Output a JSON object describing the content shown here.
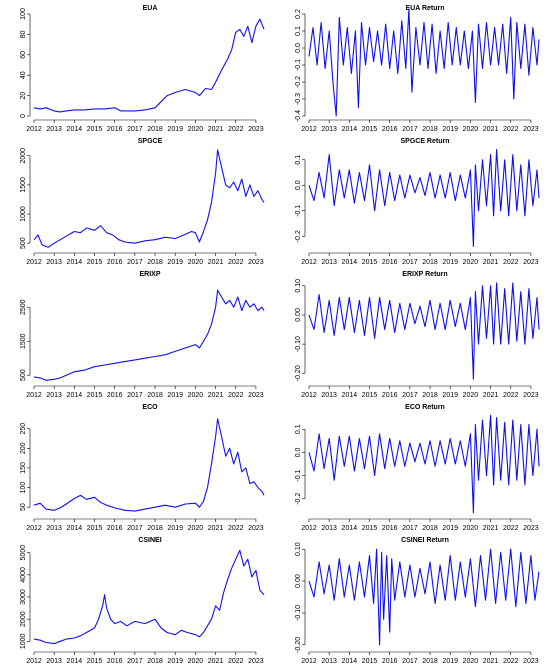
{
  "figure": {
    "series_color": "#1010ee"
  },
  "chart_data": [
    {
      "type": "line",
      "title": "EUA",
      "xlabel": "",
      "ylabel": "",
      "xlim": [
        2012,
        2023.5
      ],
      "ylim": [
        0,
        100
      ],
      "xticks": [
        "2012",
        "2013",
        "2014",
        "2015",
        "2016",
        "2017",
        "2018",
        "2019",
        "2020",
        "2021",
        "2022",
        "2023"
      ],
      "yticks": [
        0,
        20,
        40,
        60,
        80,
        100
      ],
      "x": [
        2012.0,
        2012.3,
        2012.6,
        2013.0,
        2013.3,
        2013.6,
        2014.0,
        2014.5,
        2015.0,
        2015.5,
        2016.0,
        2016.3,
        2016.6,
        2017.0,
        2017.5,
        2018.0,
        2018.3,
        2018.6,
        2019.0,
        2019.5,
        2020.0,
        2020.2,
        2020.5,
        2020.8,
        2021.0,
        2021.3,
        2021.6,
        2021.8,
        2022.0,
        2022.2,
        2022.4,
        2022.6,
        2022.8,
        2023.0,
        2023.2,
        2023.4
      ],
      "y": [
        8,
        7,
        8,
        5,
        4,
        5,
        6,
        6,
        7,
        7,
        8,
        5,
        5,
        5,
        6,
        8,
        14,
        20,
        23,
        26,
        23,
        20,
        27,
        26,
        33,
        45,
        56,
        65,
        82,
        85,
        78,
        88,
        72,
        88,
        95,
        85
      ]
    },
    {
      "type": "line",
      "title": "EUA Return",
      "xlabel": "",
      "ylabel": "",
      "xlim": [
        2012,
        2023.5
      ],
      "ylim": [
        -0.4,
        0.2
      ],
      "xticks": [
        "2012",
        "2013",
        "2014",
        "2015",
        "2016",
        "2017",
        "2018",
        "2019",
        "2020",
        "2021",
        "2022",
        "2023"
      ],
      "yticks": [
        -0.4,
        -0.3,
        -0.2,
        -0.1,
        0.0,
        0.1,
        0.2
      ],
      "x": [
        2012.0,
        2012.2,
        2012.4,
        2012.6,
        2012.8,
        2013.0,
        2013.2,
        2013.35,
        2013.5,
        2013.7,
        2013.9,
        2014.1,
        2014.3,
        2014.45,
        2014.6,
        2014.8,
        2015.0,
        2015.2,
        2015.4,
        2015.6,
        2015.8,
        2016.0,
        2016.2,
        2016.4,
        2016.6,
        2016.8,
        2016.95,
        2017.1,
        2017.3,
        2017.5,
        2017.7,
        2017.9,
        2018.1,
        2018.3,
        2018.5,
        2018.7,
        2018.9,
        2019.1,
        2019.3,
        2019.5,
        2019.7,
        2019.9,
        2020.1,
        2020.25,
        2020.4,
        2020.6,
        2020.8,
        2021.0,
        2021.2,
        2021.4,
        2021.6,
        2021.8,
        2022.0,
        2022.15,
        2022.3,
        2022.5,
        2022.7,
        2022.9,
        2023.1,
        2023.3,
        2023.4
      ],
      "y": [
        -0.05,
        0.12,
        -0.1,
        0.15,
        -0.12,
        0.1,
        -0.22,
        -0.4,
        0.18,
        -0.1,
        0.12,
        -0.15,
        0.1,
        -0.35,
        0.15,
        -0.1,
        0.12,
        -0.08,
        0.1,
        -0.1,
        0.14,
        -0.12,
        0.1,
        -0.15,
        0.16,
        -0.12,
        0.23,
        -0.26,
        0.12,
        -0.1,
        0.15,
        -0.12,
        0.14,
        -0.15,
        0.1,
        -0.12,
        0.15,
        -0.1,
        0.12,
        -0.1,
        0.1,
        -0.12,
        0.1,
        -0.32,
        0.14,
        -0.12,
        0.15,
        -0.1,
        0.12,
        -0.1,
        0.14,
        -0.15,
        0.18,
        -0.3,
        0.15,
        -0.12,
        0.14,
        -0.16,
        0.12,
        -0.1,
        0.05
      ]
    },
    {
      "type": "line",
      "title": "SPGCE",
      "xlabel": "",
      "ylabel": "",
      "xlim": [
        2012,
        2023.5
      ],
      "ylim": [
        400,
        2150
      ],
      "xticks": [
        "2012",
        "2013",
        "2014",
        "2015",
        "2016",
        "2017",
        "2018",
        "2019",
        "2020",
        "2021",
        "2022",
        "2023"
      ],
      "yticks": [
        500,
        1000,
        1500,
        2000
      ],
      "x": [
        2012.0,
        2012.2,
        2012.4,
        2012.7,
        2013.0,
        2013.3,
        2013.6,
        2014.0,
        2014.3,
        2014.6,
        2015.0,
        2015.3,
        2015.6,
        2015.9,
        2016.2,
        2016.5,
        2017.0,
        2017.5,
        2018.0,
        2018.5,
        2019.0,
        2019.5,
        2019.8,
        2020.0,
        2020.2,
        2020.4,
        2020.6,
        2020.8,
        2021.0,
        2021.1,
        2021.3,
        2021.5,
        2021.7,
        2021.9,
        2022.1,
        2022.3,
        2022.5,
        2022.7,
        2022.9,
        2023.1,
        2023.3,
        2023.4
      ],
      "y": [
        560,
        640,
        470,
        430,
        500,
        560,
        620,
        700,
        680,
        760,
        720,
        800,
        680,
        640,
        560,
        520,
        500,
        540,
        560,
        600,
        580,
        650,
        700,
        680,
        520,
        700,
        900,
        1200,
        1700,
        2100,
        1800,
        1500,
        1450,
        1550,
        1400,
        1600,
        1300,
        1500,
        1300,
        1400,
        1250,
        1200
      ]
    },
    {
      "type": "line",
      "title": "SPGCE Return",
      "xlabel": "",
      "ylabel": "",
      "xlim": [
        2012,
        2023.5
      ],
      "ylim": [
        -0.25,
        0.15
      ],
      "xticks": [
        "2012",
        "2013",
        "2014",
        "2015",
        "2016",
        "2017",
        "2018",
        "2019",
        "2020",
        "2021",
        "2022",
        "2023"
      ],
      "yticks": [
        -0.2,
        -0.1,
        0.0,
        0.1
      ],
      "x": [
        2012.0,
        2012.25,
        2012.5,
        2012.75,
        2013.0,
        2013.25,
        2013.5,
        2013.75,
        2014.0,
        2014.25,
        2014.5,
        2014.75,
        2015.0,
        2015.25,
        2015.5,
        2015.75,
        2016.0,
        2016.25,
        2016.5,
        2016.75,
        2017.0,
        2017.25,
        2017.5,
        2017.75,
        2018.0,
        2018.25,
        2018.5,
        2018.75,
        2019.0,
        2019.25,
        2019.5,
        2019.75,
        2020.0,
        2020.15,
        2020.25,
        2020.4,
        2020.6,
        2020.8,
        2021.0,
        2021.15,
        2021.3,
        2021.5,
        2021.7,
        2021.9,
        2022.1,
        2022.3,
        2022.5,
        2022.7,
        2022.9,
        2023.1,
        2023.3,
        2023.4
      ],
      "y": [
        0.0,
        -0.06,
        0.05,
        -0.05,
        0.12,
        -0.08,
        0.06,
        -0.05,
        0.06,
        -0.07,
        0.05,
        -0.06,
        0.08,
        -0.1,
        0.06,
        -0.08,
        0.05,
        -0.06,
        0.04,
        -0.05,
        0.04,
        -0.03,
        0.03,
        -0.04,
        0.05,
        -0.05,
        0.04,
        -0.05,
        0.05,
        -0.06,
        0.04,
        -0.05,
        0.06,
        -0.24,
        0.08,
        -0.1,
        0.1,
        -0.08,
        0.12,
        -0.12,
        0.14,
        -0.1,
        0.1,
        -0.12,
        0.12,
        -0.1,
        0.08,
        -0.12,
        0.1,
        -0.08,
        0.06,
        -0.05
      ]
    },
    {
      "type": "line",
      "title": "ERIXP",
      "xlabel": "",
      "ylabel": "",
      "xlim": [
        2012,
        2023.5
      ],
      "ylim": [
        300,
        3300
      ],
      "xticks": [
        "2012",
        "2013",
        "2014",
        "2015",
        "2016",
        "2017",
        "2018",
        "2019",
        "2020",
        "2021",
        "2022",
        "2023"
      ],
      "yticks": [
        500,
        1500,
        2500
      ],
      "x": [
        2012.0,
        2012.3,
        2012.6,
        2013.0,
        2013.3,
        2013.6,
        2014.0,
        2014.5,
        2015.0,
        2015.5,
        2016.0,
        2016.5,
        2017.0,
        2017.5,
        2018.0,
        2018.5,
        2019.0,
        2019.5,
        2020.0,
        2020.2,
        2020.4,
        2020.6,
        2020.8,
        2021.0,
        2021.1,
        2021.3,
        2021.5,
        2021.7,
        2021.9,
        2022.1,
        2022.3,
        2022.5,
        2022.7,
        2022.9,
        2023.1,
        2023.3,
        2023.4
      ],
      "y": [
        450,
        420,
        350,
        380,
        420,
        500,
        600,
        650,
        750,
        800,
        850,
        900,
        950,
        1000,
        1050,
        1100,
        1200,
        1300,
        1400,
        1300,
        1500,
        1700,
        2000,
        2500,
        3000,
        2800,
        2600,
        2700,
        2500,
        2800,
        2400,
        2700,
        2500,
        2600,
        2400,
        2500,
        2400
      ]
    },
    {
      "type": "line",
      "title": "ERIXP Return",
      "xlabel": "",
      "ylabel": "",
      "xlim": [
        2012,
        2023.5
      ],
      "ylim": [
        -0.23,
        0.12
      ],
      "xticks": [
        "2012",
        "2013",
        "2014",
        "2015",
        "2016",
        "2017",
        "2018",
        "2019",
        "2020",
        "2021",
        "2022",
        "2023"
      ],
      "yticks": [
        -0.2,
        -0.1,
        0.0,
        0.1
      ],
      "x": [
        2012.0,
        2012.25,
        2012.5,
        2012.75,
        2013.0,
        2013.25,
        2013.5,
        2013.75,
        2014.0,
        2014.25,
        2014.5,
        2014.75,
        2015.0,
        2015.25,
        2015.5,
        2015.75,
        2016.0,
        2016.25,
        2016.5,
        2016.75,
        2017.0,
        2017.25,
        2017.5,
        2017.75,
        2018.0,
        2018.25,
        2018.5,
        2018.75,
        2019.0,
        2019.25,
        2019.5,
        2019.75,
        2020.0,
        2020.15,
        2020.25,
        2020.4,
        2020.6,
        2020.8,
        2021.0,
        2021.15,
        2021.3,
        2021.5,
        2021.7,
        2021.9,
        2022.1,
        2022.3,
        2022.5,
        2022.7,
        2022.9,
        2023.1,
        2023.3,
        2023.4
      ],
      "y": [
        0.0,
        -0.05,
        0.07,
        -0.06,
        0.05,
        -0.07,
        0.06,
        -0.05,
        0.06,
        -0.06,
        0.05,
        -0.07,
        0.06,
        -0.08,
        0.06,
        -0.05,
        0.05,
        -0.06,
        0.04,
        -0.05,
        0.04,
        -0.03,
        0.03,
        -0.04,
        0.05,
        -0.05,
        0.04,
        -0.05,
        0.05,
        -0.04,
        0.04,
        -0.05,
        0.06,
        -0.22,
        0.08,
        -0.1,
        0.1,
        -0.08,
        0.1,
        -0.1,
        0.11,
        -0.1,
        0.09,
        -0.1,
        0.11,
        -0.09,
        0.08,
        -0.1,
        0.09,
        -0.08,
        0.06,
        -0.05
      ]
    },
    {
      "type": "line",
      "title": "ECO",
      "xlabel": "",
      "ylabel": "",
      "xlim": [
        2012,
        2023.5
      ],
      "ylim": [
        30,
        290
      ],
      "xticks": [
        "2012",
        "2013",
        "2014",
        "2015",
        "2016",
        "2017",
        "2018",
        "2019",
        "2020",
        "2021",
        "2022",
        "2023"
      ],
      "yticks": [
        50,
        100,
        150,
        200,
        250
      ],
      "x": [
        2012.0,
        2012.3,
        2012.6,
        2013.0,
        2013.3,
        2013.6,
        2014.0,
        2014.3,
        2014.6,
        2015.0,
        2015.3,
        2015.6,
        2016.0,
        2016.5,
        2017.0,
        2017.5,
        2018.0,
        2018.5,
        2019.0,
        2019.5,
        2020.0,
        2020.2,
        2020.4,
        2020.6,
        2020.8,
        2021.0,
        2021.1,
        2021.3,
        2021.5,
        2021.7,
        2021.9,
        2022.1,
        2022.3,
        2022.5,
        2022.7,
        2022.9,
        2023.1,
        2023.3,
        2023.4
      ],
      "y": [
        55,
        60,
        45,
        42,
        48,
        58,
        72,
        80,
        70,
        75,
        62,
        55,
        48,
        42,
        40,
        45,
        50,
        55,
        50,
        58,
        60,
        50,
        65,
        100,
        160,
        230,
        275,
        230,
        180,
        200,
        160,
        190,
        140,
        150,
        110,
        115,
        100,
        90,
        80
      ]
    },
    {
      "type": "line",
      "title": "ECO Return",
      "xlabel": "",
      "ylabel": "",
      "xlim": [
        2012,
        2023.5
      ],
      "ylim": [
        -0.27,
        0.17
      ],
      "xticks": [
        "2012",
        "2013",
        "2014",
        "2015",
        "2016",
        "2017",
        "2018",
        "2019",
        "2020",
        "2021",
        "2022",
        "2023"
      ],
      "yticks": [
        -0.2,
        -0.1,
        0.0,
        0.1
      ],
      "x": [
        2012.0,
        2012.25,
        2012.5,
        2012.75,
        2013.0,
        2013.25,
        2013.5,
        2013.75,
        2014.0,
        2014.25,
        2014.5,
        2014.75,
        2015.0,
        2015.25,
        2015.5,
        2015.75,
        2016.0,
        2016.25,
        2016.5,
        2016.75,
        2017.0,
        2017.25,
        2017.5,
        2017.75,
        2018.0,
        2018.25,
        2018.5,
        2018.75,
        2019.0,
        2019.25,
        2019.5,
        2019.75,
        2020.0,
        2020.15,
        2020.25,
        2020.4,
        2020.6,
        2020.8,
        2021.0,
        2021.15,
        2021.3,
        2021.5,
        2021.7,
        2021.9,
        2022.1,
        2022.3,
        2022.5,
        2022.7,
        2022.9,
        2023.1,
        2023.3,
        2023.4
      ],
      "y": [
        0.0,
        -0.08,
        0.08,
        -0.07,
        0.06,
        -0.12,
        0.07,
        -0.06,
        0.07,
        -0.08,
        0.06,
        -0.07,
        0.07,
        -0.1,
        0.08,
        -0.07,
        0.06,
        -0.06,
        0.05,
        -0.06,
        0.04,
        -0.04,
        0.04,
        -0.05,
        0.05,
        -0.06,
        0.05,
        -0.05,
        0.06,
        -0.05,
        0.05,
        -0.06,
        0.08,
        -0.26,
        0.12,
        -0.12,
        0.14,
        -0.1,
        0.16,
        -0.14,
        0.15,
        -0.12,
        0.13,
        -0.14,
        0.14,
        -0.12,
        0.12,
        -0.14,
        0.12,
        -0.1,
        0.1,
        -0.06
      ]
    },
    {
      "type": "line",
      "title": "CSINEI",
      "xlabel": "",
      "ylabel": "",
      "xlim": [
        2012,
        2023.5
      ],
      "ylim": [
        700,
        5300
      ],
      "xticks": [
        "2012",
        "2013",
        "2014",
        "2015",
        "2016",
        "2017",
        "2018",
        "2019",
        "2020",
        "2021",
        "2022",
        "2023"
      ],
      "yticks": [
        1000,
        2000,
        3000,
        4000,
        5000
      ],
      "x": [
        2012.0,
        2012.3,
        2012.6,
        2013.0,
        2013.3,
        2013.6,
        2014.0,
        2014.3,
        2014.6,
        2015.0,
        2015.2,
        2015.4,
        2015.5,
        2015.6,
        2015.8,
        2016.0,
        2016.3,
        2016.6,
        2017.0,
        2017.5,
        2018.0,
        2018.3,
        2018.6,
        2019.0,
        2019.3,
        2019.6,
        2020.0,
        2020.2,
        2020.4,
        2020.6,
        2020.8,
        2021.0,
        2021.2,
        2021.4,
        2021.6,
        2021.8,
        2022.0,
        2022.2,
        2022.4,
        2022.6,
        2022.8,
        2023.0,
        2023.2,
        2023.4
      ],
      "y": [
        1100,
        1050,
        950,
        900,
        1000,
        1100,
        1150,
        1250,
        1400,
        1600,
        2000,
        2600,
        3100,
        2500,
        2000,
        1800,
        1900,
        1700,
        1900,
        1800,
        2000,
        1600,
        1400,
        1300,
        1500,
        1400,
        1300,
        1200,
        1400,
        1700,
        2000,
        2600,
        2400,
        3200,
        3800,
        4300,
        4700,
        5100,
        4400,
        4700,
        3900,
        4200,
        3300,
        3100
      ]
    },
    {
      "type": "line",
      "title": "CSINEI Return",
      "xlabel": "",
      "ylabel": "",
      "xlim": [
        2012,
        2023.5
      ],
      "ylim": [
        -0.21,
        0.11
      ],
      "xticks": [
        "2012",
        "2013",
        "2014",
        "2015",
        "2016",
        "2017",
        "2018",
        "2019",
        "2020",
        "2021",
        "2022",
        "2023"
      ],
      "yticks": [
        -0.2,
        -0.1,
        0.0,
        0.1
      ],
      "x": [
        2012.0,
        2012.25,
        2012.5,
        2012.75,
        2013.0,
        2013.25,
        2013.5,
        2013.75,
        2014.0,
        2014.25,
        2014.5,
        2014.75,
        2015.0,
        2015.2,
        2015.35,
        2015.5,
        2015.6,
        2015.7,
        2015.85,
        2016.0,
        2016.1,
        2016.25,
        2016.5,
        2016.75,
        2017.0,
        2017.25,
        2017.5,
        2017.75,
        2018.0,
        2018.25,
        2018.5,
        2018.75,
        2019.0,
        2019.25,
        2019.5,
        2019.75,
        2020.0,
        2020.25,
        2020.5,
        2020.75,
        2021.0,
        2021.25,
        2021.5,
        2021.75,
        2022.0,
        2022.25,
        2022.5,
        2022.75,
        2023.0,
        2023.2,
        2023.4
      ],
      "y": [
        0.0,
        -0.05,
        0.06,
        -0.04,
        0.05,
        -0.06,
        0.07,
        -0.05,
        0.05,
        -0.06,
        0.06,
        -0.05,
        0.08,
        -0.07,
        0.1,
        -0.2,
        0.09,
        -0.12,
        0.08,
        -0.16,
        0.07,
        -0.06,
        0.06,
        -0.05,
        0.05,
        -0.05,
        0.04,
        -0.04,
        0.06,
        -0.07,
        0.05,
        -0.06,
        0.08,
        -0.06,
        0.06,
        -0.05,
        0.07,
        -0.08,
        0.08,
        -0.06,
        0.1,
        -0.07,
        0.09,
        -0.06,
        0.1,
        -0.08,
        0.09,
        -0.07,
        0.08,
        -0.06,
        0.03
      ]
    }
  ]
}
